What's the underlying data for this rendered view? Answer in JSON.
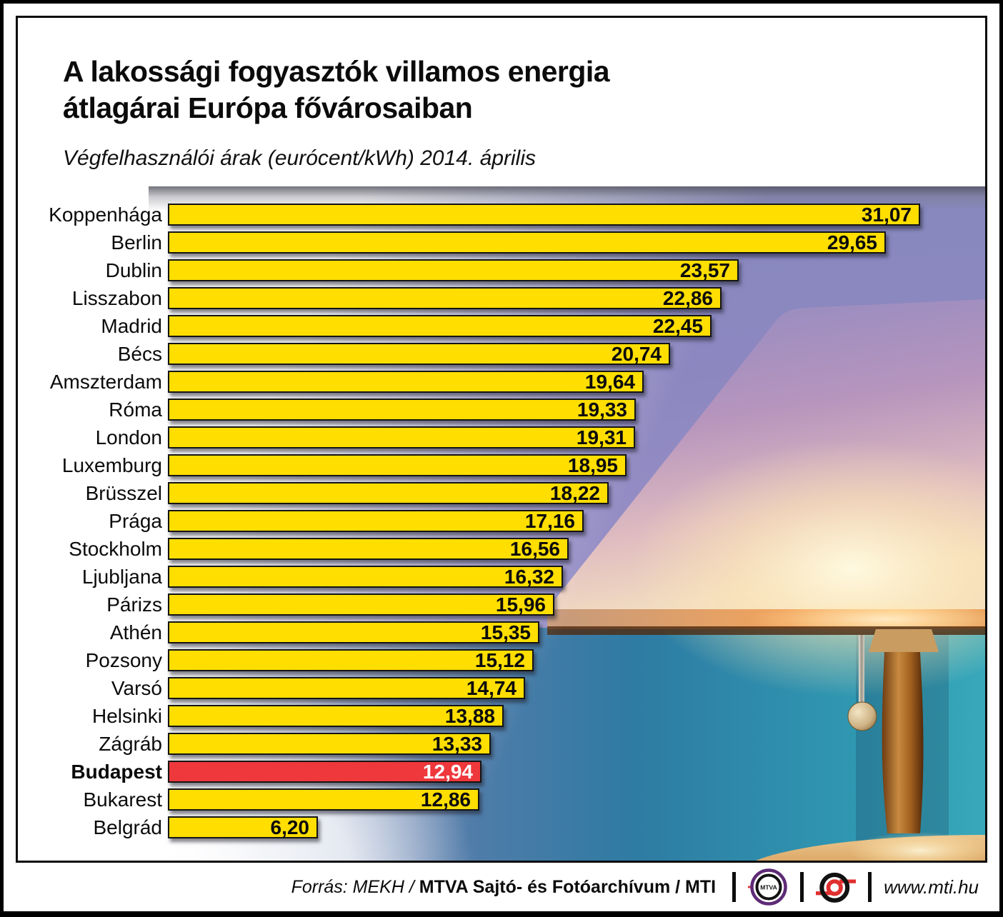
{
  "title_line1": "A lakossági fogyasztók villamos energia",
  "title_line2": "átlagárai Európa fővárosaiban",
  "subtitle": "Végfelhasználói árak (eurócent/kWh) 2014. április",
  "chart_data": {
    "type": "bar",
    "orientation": "horizontal",
    "title": "A lakossági fogyasztók villamos energia átlagárai Európa fővárosaiban",
    "unit": "eurócent/kWh",
    "period": "2014. április",
    "xlim": [
      0,
      31.07
    ],
    "grid": false,
    "categories": [
      "Koppenhága",
      "Berlin",
      "Dublin",
      "Lisszabon",
      "Madrid",
      "Bécs",
      "Amszterdam",
      "Róma",
      "London",
      "Luxemburg",
      "Brüsszel",
      "Prága",
      "Stockholm",
      "Ljubljana",
      "Párizs",
      "Athén",
      "Pozsony",
      "Varsó",
      "Helsinki",
      "Zágráb",
      "Budapest",
      "Bukarest",
      "Belgrád"
    ],
    "values": [
      31.07,
      29.65,
      23.57,
      22.86,
      22.45,
      20.74,
      19.64,
      19.33,
      19.31,
      18.95,
      18.22,
      17.16,
      16.56,
      16.32,
      15.96,
      15.35,
      15.12,
      14.74,
      13.88,
      13.33,
      12.94,
      12.86,
      6.2
    ],
    "value_labels": [
      "31,07",
      "29,65",
      "23,57",
      "22,86",
      "22,45",
      "20,74",
      "19,64",
      "19,33",
      "19,31",
      "18,95",
      "18,22",
      "17,16",
      "16,56",
      "16,32",
      "15,96",
      "15,35",
      "15,12",
      "14,74",
      "13,88",
      "13,33",
      "12,94",
      "12,86",
      "6,20"
    ],
    "highlight_category": "Budapest",
    "bar_color": "#ffde00",
    "highlight_color": "#ee383c",
    "bar_border_color": "#141414",
    "value_label_position": "inside-right"
  },
  "footer": {
    "source_prefix": "Forrás: MEKH /",
    "source_bold": "MTVA Sajtó- és Fotóarchívum / MTI",
    "mtva_logo_text": "MTVA",
    "url": "www.mti.hu"
  }
}
